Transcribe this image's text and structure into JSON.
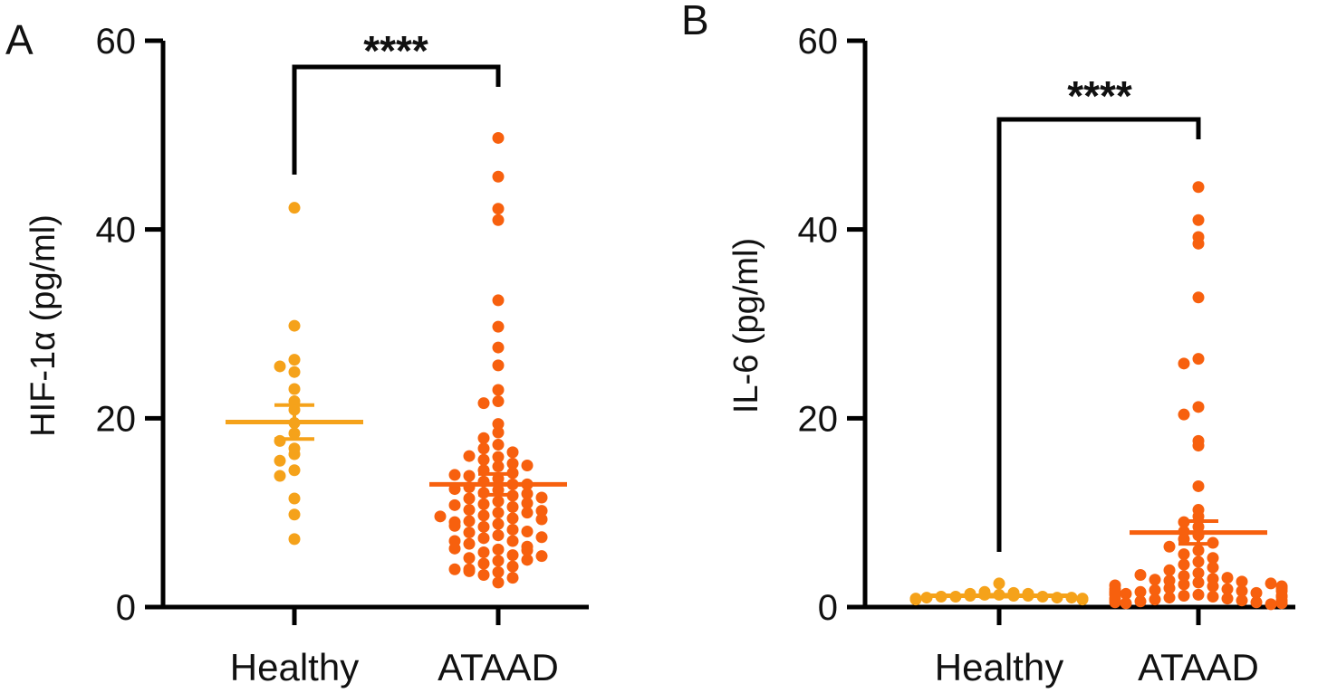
{
  "chart_data": [
    {
      "type": "scatter",
      "panel_label": "A",
      "ylabel": "HIF-1α  (pg/ml)",
      "ylim": [
        0,
        60
      ],
      "yticks": [
        0,
        20,
        40,
        60
      ],
      "categories": [
        "Healthy",
        "ATAAD"
      ],
      "significance": "****",
      "series": [
        {
          "name": "Healthy",
          "color": "#F5A21A",
          "mean": 19.6,
          "sem_upper": 21.4,
          "sem_lower": 17.8,
          "values": [
            42.3,
            29.8,
            26.2,
            25.5,
            24.9,
            23.1,
            21.8,
            20.9,
            19.5,
            18.4,
            17.6,
            16.8,
            16.2,
            15.5,
            14.5,
            13.9,
            11.5,
            9.8,
            7.2
          ]
        },
        {
          "name": "ATAAD",
          "color": "#F7600E",
          "mean": 13.0,
          "sem_upper": 14.1,
          "sem_lower": 11.9,
          "values": [
            49.7,
            45.6,
            42.2,
            41.0,
            32.5,
            29.7,
            27.5,
            25.6,
            23.0,
            21.8,
            21.6,
            19.4,
            18.5,
            17.9,
            17.2,
            16.8,
            16.4,
            15.9,
            15.6,
            15.2,
            14.9,
            14.5,
            14.2,
            13.9,
            13.6,
            13.3,
            13.0,
            12.7,
            12.4,
            12.1,
            11.8,
            11.5,
            11.2,
            10.9,
            10.6,
            10.3,
            10.0,
            9.7,
            9.4,
            9.1,
            8.8,
            8.5,
            8.2,
            7.9,
            7.6,
            7.3,
            7.0,
            6.7,
            6.4,
            6.1,
            5.8,
            5.5,
            5.2,
            4.9,
            4.6,
            4.3,
            4.0,
            3.7,
            3.4,
            3.1,
            2.6,
            16.0,
            15.0,
            14.0,
            13.0,
            12.0,
            11.0,
            10.0,
            9.0,
            8.0,
            7.0,
            6.0,
            5.0,
            4.0,
            12.5,
            10.8,
            9.3,
            8.6,
            7.4,
            6.2,
            5.4,
            3.8,
            11.6,
            10.2,
            9.6
          ]
        }
      ]
    },
    {
      "type": "scatter",
      "panel_label": "B",
      "ylabel": "IL-6  (pg/ml)",
      "ylim": [
        0,
        60
      ],
      "yticks": [
        0,
        20,
        40,
        60
      ],
      "categories": [
        "Healthy",
        "ATAAD"
      ],
      "significance": "****",
      "series": [
        {
          "name": "Healthy",
          "color": "#F5A21A",
          "mean": 1.2,
          "sem_upper": 1.3,
          "sem_lower": 1.1,
          "values": [
            2.5,
            1.6,
            1.5,
            1.4,
            1.4,
            1.3,
            1.3,
            1.2,
            1.2,
            1.2,
            1.1,
            1.1,
            1.1,
            1.0,
            1.0,
            1.0,
            0.9,
            0.9,
            0.8,
            0.8
          ]
        },
        {
          "name": "ATAAD",
          "color": "#F7600E",
          "mean": 7.9,
          "sem_upper": 9.1,
          "sem_lower": 6.7,
          "values": [
            44.5,
            41.0,
            39.2,
            38.5,
            32.8,
            26.3,
            25.8,
            21.2,
            20.4,
            17.6,
            17.1,
            12.8,
            10.3,
            9.6,
            9.0,
            8.5,
            8.0,
            7.6,
            7.2,
            6.8,
            6.4,
            6.0,
            5.6,
            5.2,
            4.8,
            4.5,
            4.2,
            3.9,
            3.6,
            3.3,
            3.0,
            2.8,
            2.6,
            2.4,
            2.2,
            2.0,
            1.9,
            1.8,
            1.7,
            1.6,
            1.5,
            1.4,
            1.3,
            1.2,
            1.1,
            1.0,
            0.9,
            0.8,
            0.7,
            0.6,
            0.5,
            0.4,
            0.3,
            3.1,
            2.9,
            2.5,
            2.3,
            2.1,
            1.9,
            1.7,
            1.5,
            1.3,
            1.1,
            0.9,
            0.7,
            0.5,
            2.7,
            2.2,
            1.6,
            1.2,
            0.8,
            0.4,
            3.4,
            2.0,
            1.4
          ]
        }
      ]
    }
  ]
}
